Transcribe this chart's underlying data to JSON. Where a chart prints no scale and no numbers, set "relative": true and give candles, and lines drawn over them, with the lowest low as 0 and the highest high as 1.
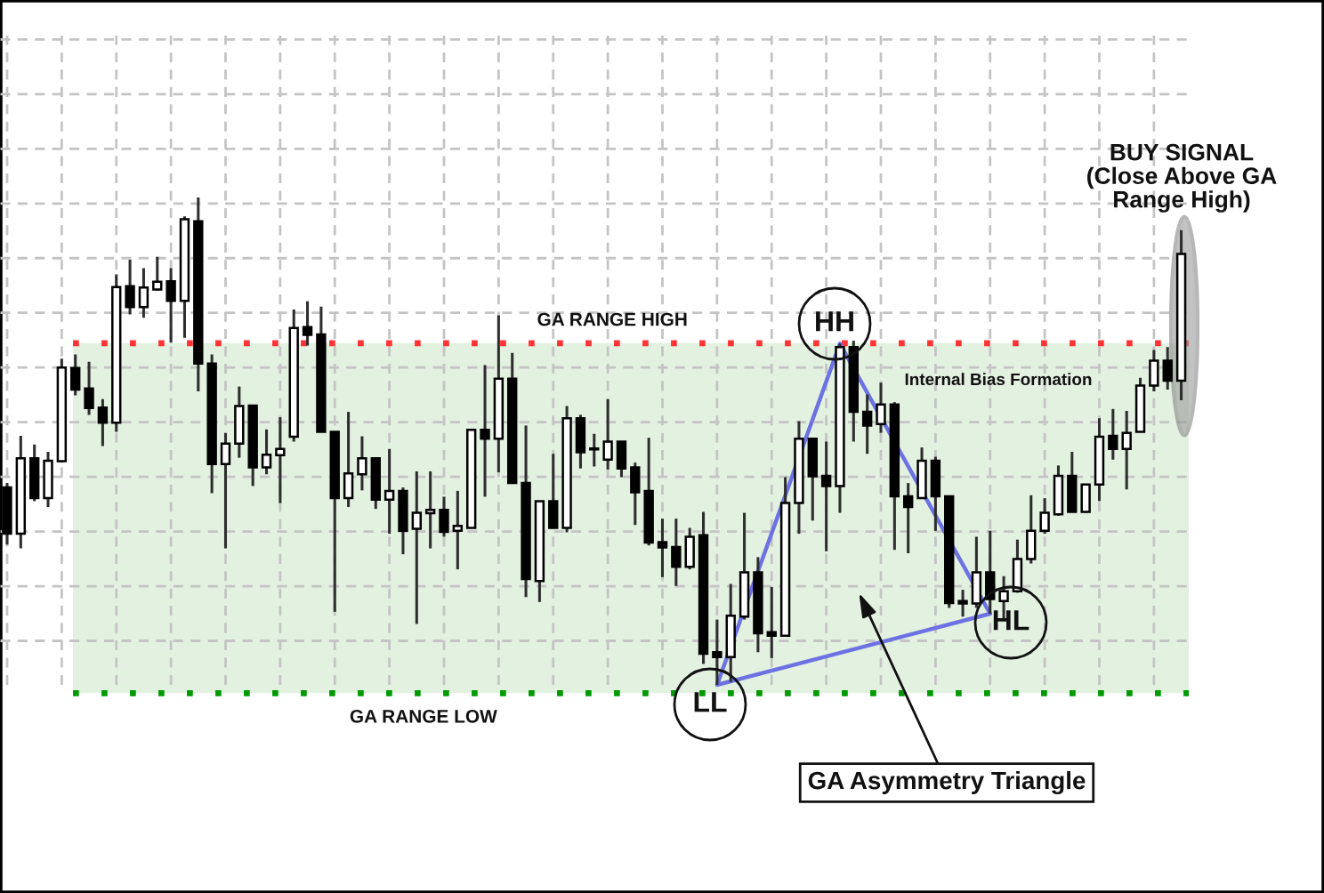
{
  "chart_data": {
    "type": "candlestick",
    "relative": true,
    "grid": true,
    "categories": [
      null,
      null,
      null,
      null,
      null,
      null,
      null,
      null,
      null,
      null,
      null,
      null,
      null,
      null,
      null,
      null,
      null,
      null,
      null,
      null,
      null,
      null,
      null,
      null,
      null,
      null,
      null,
      null,
      null,
      null,
      null,
      null,
      null,
      null,
      null,
      null,
      null,
      null,
      null,
      null,
      null,
      null,
      null,
      null,
      null,
      null,
      null,
      null,
      null,
      null,
      null,
      null,
      null,
      null,
      null,
      null,
      null,
      null,
      null,
      null,
      null,
      null,
      null,
      null,
      null,
      null,
      null,
      null,
      null,
      null,
      null,
      null,
      null,
      null,
      null,
      null,
      null,
      null,
      null,
      null,
      null,
      null,
      null,
      null,
      null,
      null,
      null
    ],
    "ohlc": [
      [
        0.405,
        0.414,
        0.288,
        0.31
      ],
      [
        0.31,
        0.511,
        0.28,
        0.465
      ],
      [
        0.465,
        0.493,
        0.377,
        0.383
      ],
      [
        0.383,
        0.478,
        0.365,
        0.46
      ],
      [
        0.459,
        0.669,
        0.456,
        0.651
      ],
      [
        0.65,
        0.678,
        0.594,
        0.606
      ],
      [
        0.608,
        0.663,
        0.554,
        0.568
      ],
      [
        0.569,
        0.586,
        0.49,
        0.538
      ],
      [
        0.538,
        0.842,
        0.519,
        0.816
      ],
      [
        0.818,
        0.872,
        0.76,
        0.775
      ],
      [
        0.775,
        0.855,
        0.753,
        0.815
      ],
      [
        0.811,
        0.878,
        0.809,
        0.827
      ],
      [
        0.828,
        0.855,
        0.702,
        0.788
      ],
      [
        0.788,
        0.961,
        0.712,
        0.955
      ],
      [
        0.951,
        1.0,
        0.602,
        0.659
      ],
      [
        0.659,
        0.678,
        0.393,
        0.453
      ],
      [
        0.453,
        0.517,
        0.28,
        0.495
      ],
      [
        0.495,
        0.612,
        0.466,
        0.572
      ],
      [
        0.573,
        0.574,
        0.408,
        0.446
      ],
      [
        0.446,
        0.524,
        0.432,
        0.472
      ],
      [
        0.471,
        0.549,
        0.373,
        0.484
      ],
      [
        0.509,
        0.77,
        0.499,
        0.732
      ],
      [
        0.734,
        0.787,
        0.696,
        0.718
      ],
      [
        0.719,
        0.776,
        0.519,
        0.519
      ],
      [
        0.519,
        0.519,
        0.15,
        0.383
      ],
      [
        0.383,
        0.56,
        0.365,
        0.434
      ],
      [
        0.432,
        0.51,
        0.399,
        0.465
      ],
      [
        0.465,
        0.465,
        0.361,
        0.38
      ],
      [
        0.38,
        0.484,
        0.31,
        0.398
      ],
      [
        0.398,
        0.405,
        0.268,
        0.316
      ],
      [
        0.32,
        0.438,
        0.125,
        0.353
      ],
      [
        0.352,
        0.438,
        0.28,
        0.359
      ],
      [
        0.359,
        0.386,
        0.304,
        0.314
      ],
      [
        0.316,
        0.398,
        0.237,
        0.326
      ],
      [
        0.322,
        0.523,
        0.322,
        0.523
      ],
      [
        0.523,
        0.656,
        0.386,
        0.505
      ],
      [
        0.505,
        0.758,
        0.436,
        0.628
      ],
      [
        0.628,
        0.681,
        0.414,
        0.414
      ],
      [
        0.414,
        0.532,
        0.18,
        0.217
      ],
      [
        0.213,
        0.377,
        0.17,
        0.377
      ],
      [
        0.377,
        0.474,
        0.322,
        0.322
      ],
      [
        0.322,
        0.572,
        0.313,
        0.547
      ],
      [
        0.547,
        0.554,
        0.444,
        0.477
      ],
      [
        0.485,
        0.515,
        0.448,
        0.483
      ],
      [
        0.462,
        0.586,
        0.442,
        0.499
      ],
      [
        0.499,
        0.499,
        0.426,
        0.444
      ],
      [
        0.446,
        0.456,
        0.328,
        0.395
      ],
      [
        0.398,
        0.507,
        0.286,
        0.292
      ],
      [
        0.293,
        0.341,
        0.221,
        0.282
      ],
      [
        0.283,
        0.341,
        0.203,
        0.242
      ],
      [
        0.242,
        0.322,
        0.237,
        0.304
      ],
      [
        0.307,
        0.355,
        0.043,
        0.064
      ],
      [
        0.067,
        0.134,
        0.0,
        0.057
      ],
      [
        0.057,
        0.207,
        0.006,
        0.142
      ],
      [
        0.14,
        0.353,
        0.134,
        0.231
      ],
      [
        0.231,
        0.262,
        0.067,
        0.106
      ],
      [
        0.108,
        0.201,
        0.055,
        0.101
      ],
      [
        0.101,
        0.426,
        0.101,
        0.373
      ],
      [
        0.373,
        0.541,
        0.31,
        0.505
      ],
      [
        0.505,
        0.505,
        0.337,
        0.428
      ],
      [
        0.429,
        0.499,
        0.274,
        0.408
      ],
      [
        0.408,
        0.7,
        0.353,
        0.693
      ],
      [
        0.693,
        0.706,
        0.499,
        0.56
      ],
      [
        0.56,
        0.596,
        0.474,
        0.532
      ],
      [
        0.535,
        0.62,
        0.517,
        0.575
      ],
      [
        0.575,
        0.58,
        0.277,
        0.387
      ],
      [
        0.387,
        0.414,
        0.27,
        0.365
      ],
      [
        0.383,
        0.487,
        0.383,
        0.46
      ],
      [
        0.46,
        0.468,
        0.316,
        0.387
      ],
      [
        0.387,
        0.387,
        0.158,
        0.168
      ],
      [
        0.172,
        0.195,
        0.14,
        0.167
      ],
      [
        0.167,
        0.304,
        0.158,
        0.231
      ],
      [
        0.231,
        0.316,
        0.146,
        0.176
      ],
      [
        0.172,
        0.223,
        0.134,
        0.192
      ],
      [
        0.192,
        0.298,
        0.189,
        0.258
      ],
      [
        0.258,
        0.389,
        0.249,
        0.316
      ],
      [
        0.316,
        0.383,
        0.31,
        0.353
      ],
      [
        0.35,
        0.45,
        0.347,
        0.429
      ],
      [
        0.429,
        0.478,
        0.355,
        0.355
      ],
      [
        0.355,
        0.411,
        0.353,
        0.411
      ],
      [
        0.411,
        0.547,
        0.377,
        0.509
      ],
      [
        0.511,
        0.566,
        0.462,
        0.484
      ],
      [
        0.484,
        0.562,
        0.401,
        0.517
      ],
      [
        0.519,
        0.63,
        0.519,
        0.614
      ],
      [
        0.614,
        0.687,
        0.602,
        0.665
      ],
      [
        0.665,
        0.693,
        0.606,
        0.624
      ],
      [
        0.624,
        0.933,
        0.584,
        0.884
      ]
    ],
    "ref_lines": [
      {
        "axis": "y",
        "value": 0.701,
        "label": "GA RANGE HIGH",
        "color": "#ff3333",
        "line_style": "dotted"
      },
      {
        "axis": "y",
        "value": -0.017,
        "label": "GA RANGE LOW",
        "color": "#009a00",
        "line_style": "dotted"
      }
    ],
    "bands": [
      {
        "axis": "y",
        "from": -0.017,
        "to": 0.701,
        "color": "#e3f1e1"
      }
    ],
    "annotations": [
      "BUY SIGNAL\n(Close Above GA\nRange High)",
      "HH",
      "Internal Bias Formation",
      "LL",
      "HL",
      "GA Asymmetry Triangle"
    ]
  }
}
